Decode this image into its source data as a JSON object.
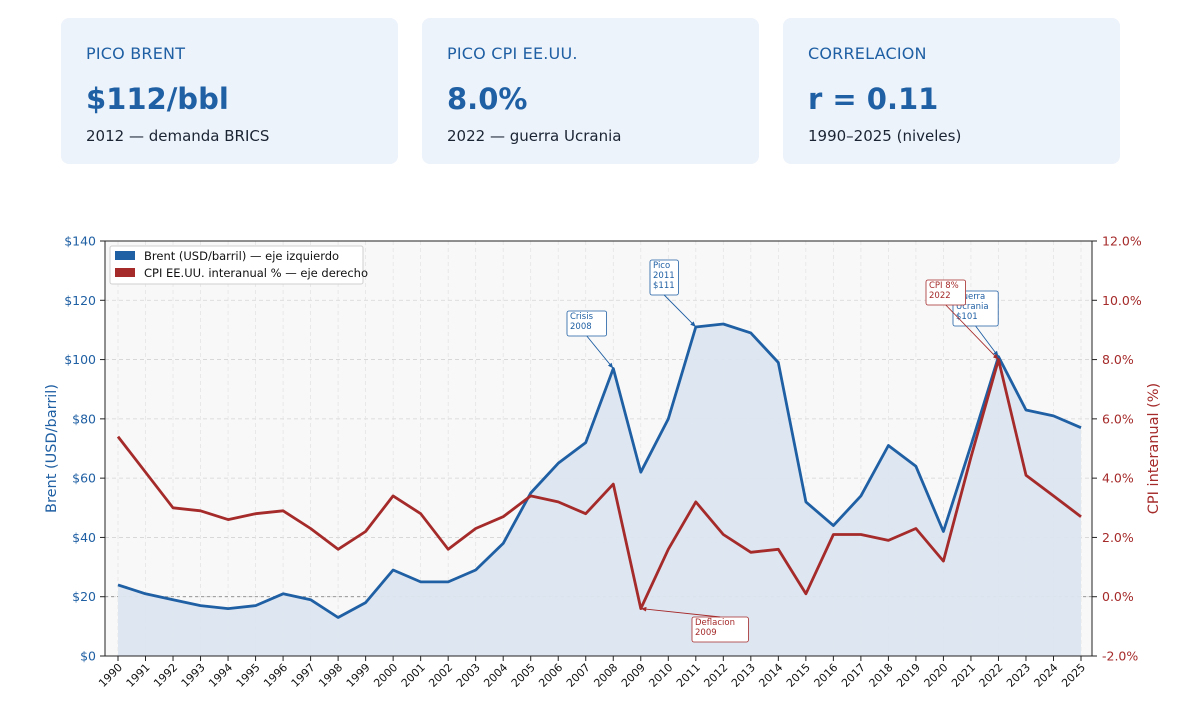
{
  "cards": [
    {
      "label": "PICO BRENT",
      "value": "$112/bbl",
      "sub": "2012 — demanda BRICS"
    },
    {
      "label": "PICO CPI EE.UU.",
      "value": "8.0%",
      "sub": "2022 — guerra Ucrania"
    },
    {
      "label": "CORRELACION",
      "value": "r = 0.11",
      "sub": "1990–2025 (niveles)"
    }
  ],
  "colors": {
    "brent": "#1f5fa3",
    "cpi": "#a52a2a",
    "fill": "#dce5f0",
    "card_bg": "#edf3fb"
  },
  "chart_data": {
    "type": "line",
    "title": "",
    "x": [
      "1990",
      "1991",
      "1992",
      "1993",
      "1994",
      "1995",
      "1996",
      "1997",
      "1998",
      "1999",
      "2000",
      "2001",
      "2002",
      "2003",
      "2004",
      "2005",
      "2006",
      "2007",
      "2008",
      "2009",
      "2010",
      "2011",
      "2012",
      "2013",
      "2014",
      "2015",
      "2016",
      "2017",
      "2018",
      "2019",
      "2020",
      "2021",
      "2022",
      "2023",
      "2024",
      "2025"
    ],
    "xlabel": "",
    "left_axis": {
      "label": "Brent (USD/barril)",
      "ylim": [
        0,
        140
      ],
      "ticks": [
        "$0",
        "$20",
        "$40",
        "$60",
        "$80",
        "$100",
        "$120",
        "$140"
      ]
    },
    "right_axis": {
      "label": "CPI interanual (%)",
      "ylim": [
        -2,
        12
      ],
      "ticks": [
        "-2.0%",
        "0.0%",
        "2.0%",
        "4.0%",
        "6.0%",
        "8.0%",
        "10.0%",
        "12.0%"
      ]
    },
    "series": [
      {
        "name": "Brent (USD/barril) — eje izquierdo",
        "axis": "left",
        "fill": true,
        "values": [
          24,
          21,
          19,
          17,
          16,
          17,
          21,
          19,
          13,
          18,
          29,
          25,
          25,
          29,
          38,
          55,
          65,
          72,
          97,
          62,
          80,
          111,
          112,
          109,
          99,
          52,
          44,
          54,
          71,
          64,
          42,
          71,
          101,
          83,
          81,
          77
        ]
      },
      {
        "name": "CPI EE.UU. interanual % — eje derecho",
        "axis": "right",
        "fill": false,
        "values": [
          5.4,
          4.2,
          3.0,
          2.9,
          2.6,
          2.8,
          2.9,
          2.3,
          1.6,
          2.2,
          3.4,
          2.8,
          1.6,
          2.3,
          2.7,
          3.4,
          3.2,
          2.8,
          3.8,
          -0.4,
          1.6,
          3.2,
          2.1,
          1.5,
          1.6,
          0.1,
          2.1,
          2.1,
          1.9,
          2.3,
          1.2,
          4.7,
          8.0,
          4.1,
          3.4,
          2.7
        ]
      }
    ],
    "annotations": [
      {
        "series": 0,
        "x": "2008",
        "lines": [
          "Crisis",
          "2008"
        ]
      },
      {
        "series": 0,
        "x": "2011",
        "lines": [
          "Pico",
          "2011",
          "$111"
        ]
      },
      {
        "series": 0,
        "x": "2022",
        "lines": [
          "Guerra",
          "Ucrania",
          "$101"
        ]
      },
      {
        "series": 1,
        "x": "2009",
        "lines": [
          "Deflacion",
          "2009"
        ]
      },
      {
        "series": 1,
        "x": "2022",
        "lines": [
          "CPI 8%",
          "2022"
        ]
      }
    ],
    "grid": true,
    "legend": "top-left"
  }
}
